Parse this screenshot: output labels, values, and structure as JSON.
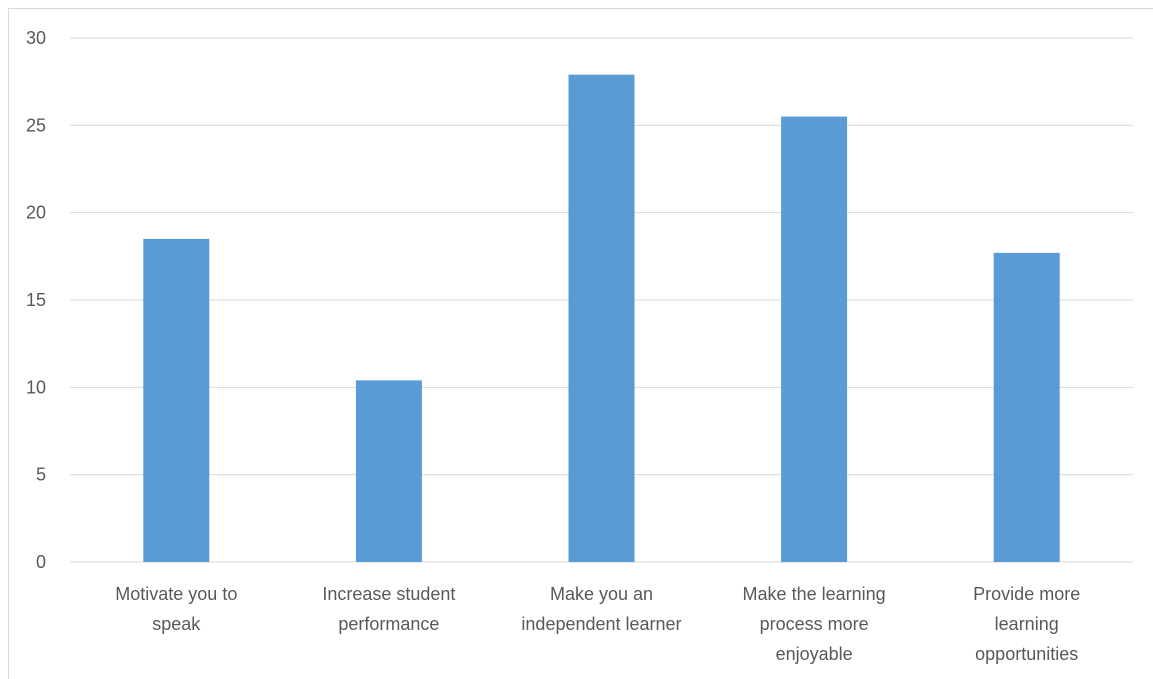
{
  "chart_data": {
    "type": "bar",
    "title": "",
    "xlabel": "",
    "ylabel": "",
    "categories": [
      [
        "Motivate you to",
        "speak"
      ],
      [
        "Increase student",
        "performance"
      ],
      [
        "Make you an",
        "independent learner"
      ],
      [
        "Make the learning",
        "process more",
        "enjoyable"
      ],
      [
        "Provide more",
        "learning",
        "opportunities"
      ]
    ],
    "values": [
      18.5,
      10.4,
      27.9,
      25.5,
      17.7
    ],
    "ylim": [
      0,
      30
    ],
    "yticks": [
      0,
      5,
      10,
      15,
      20,
      25,
      30
    ],
    "grid": true,
    "legend": "none",
    "colors": {
      "bar": "#5b9bd5",
      "grid": "#d9d9d9",
      "text": "#595959"
    }
  }
}
